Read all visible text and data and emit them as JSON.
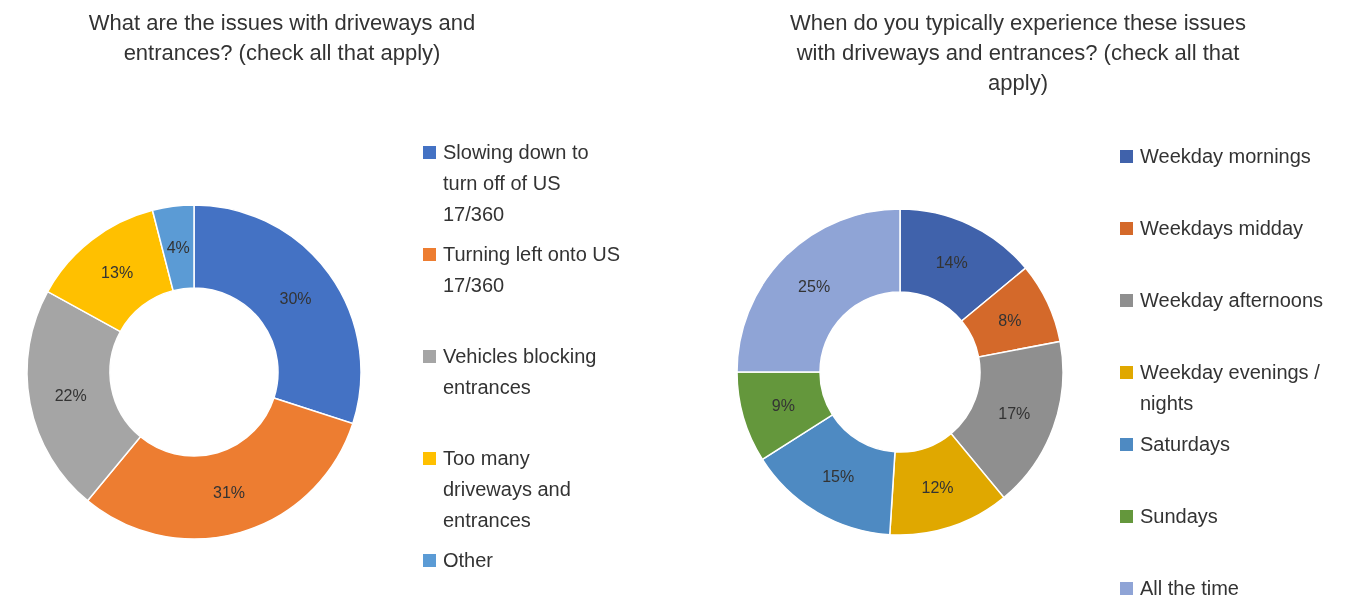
{
  "chart_data": [
    {
      "type": "donut",
      "title": "What are the issues with driveways and entrances? (check all that apply)",
      "categories": [
        "Slowing down to turn off of US 17/360",
        "Turning left onto US 17/360",
        "Vehicles blocking entrances",
        "Too many driveways and entrances",
        "Other"
      ],
      "values": [
        30,
        31,
        22,
        13,
        4
      ],
      "value_labels": [
        "30%",
        "31%",
        "22%",
        "13%",
        "4%"
      ],
      "colors": [
        "#4472c4",
        "#ed7d31",
        "#a5a5a5",
        "#ffc000",
        "#5b9bd5"
      ],
      "legend": "right"
    },
    {
      "type": "donut",
      "title": "When do you typically experience these issues with driveways and entrances? (check all that apply)",
      "categories": [
        "Weekday mornings",
        "Weekdays midday",
        "Weekday afternoons",
        "Weekday evenings / nights",
        "Saturdays",
        "Sundays",
        "All the time"
      ],
      "values": [
        14,
        8,
        17,
        12,
        15,
        9,
        25
      ],
      "value_labels": [
        "14%",
        "8%",
        "17%",
        "12%",
        "15%",
        "9%",
        "25%"
      ],
      "colors": [
        "#4062ab",
        "#d4692a",
        "#8f8f8f",
        "#e0a800",
        "#4e8ac2",
        "#64973c",
        "#8fa4d6"
      ],
      "legend": "right"
    }
  ]
}
